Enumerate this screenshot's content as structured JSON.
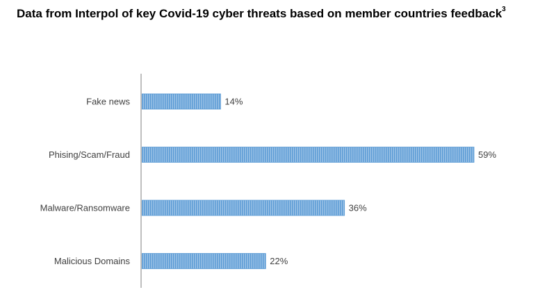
{
  "title": "Data from Interpol of key Covid-19 cyber threats based on member countries feedback",
  "title_footnote": "3",
  "colors": {
    "bar": "#5b9bd5",
    "bar_stripe": "#9dc3e6",
    "axis": "#bfbfbf",
    "text": "#404040"
  },
  "chart_data": {
    "type": "bar",
    "orientation": "horizontal",
    "title": "Data from Interpol of key Covid-19 cyber threats based on member countries feedback",
    "categories": [
      "Fake news",
      "Phising/Scam/Fraud",
      "Malware/Ransomware",
      "Malicious Domains"
    ],
    "values": [
      14,
      59,
      36,
      22
    ],
    "data_labels": [
      "14%",
      "59%",
      "36%",
      "22%"
    ],
    "unit": "%",
    "xlim": [
      0,
      60
    ],
    "grid": false,
    "legend": "none"
  }
}
